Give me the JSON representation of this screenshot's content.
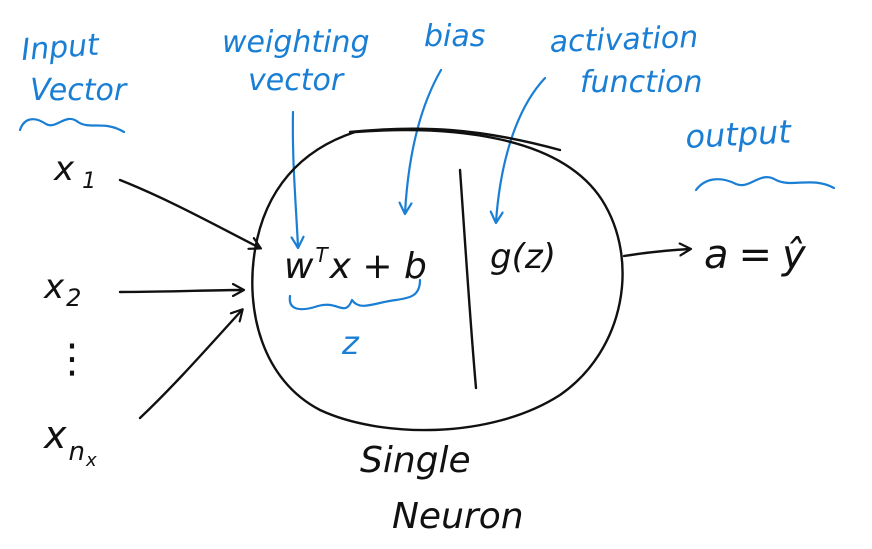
{
  "labels": {
    "input_vector_line1": "Input",
    "input_vector_line2": "Vector",
    "weighting_vector_line1": "weighting",
    "weighting_vector_line2": "vector",
    "bias": "bias",
    "activation_function_line1": "activation",
    "activation_function_line2": "function",
    "output": "output",
    "z_label": "z",
    "neuron_line1": "Single",
    "neuron_line2": "Neuron"
  },
  "inputs": {
    "x1": "x",
    "x1_sub": "1",
    "x2": "x",
    "x2_sub": "2",
    "dots": "⋮",
    "xn": "x",
    "xn_sub": "n",
    "xn_subsub": "x"
  },
  "neuron": {
    "linear_w": "w",
    "linear_sup": "T",
    "linear_rest": "x + b",
    "activation": "g(z)"
  },
  "output_expr": {
    "lhs": "a",
    "eq": "=",
    "rhs": "ŷ"
  },
  "colors": {
    "annotation": "#1a7fd4",
    "ink": "#111111"
  }
}
